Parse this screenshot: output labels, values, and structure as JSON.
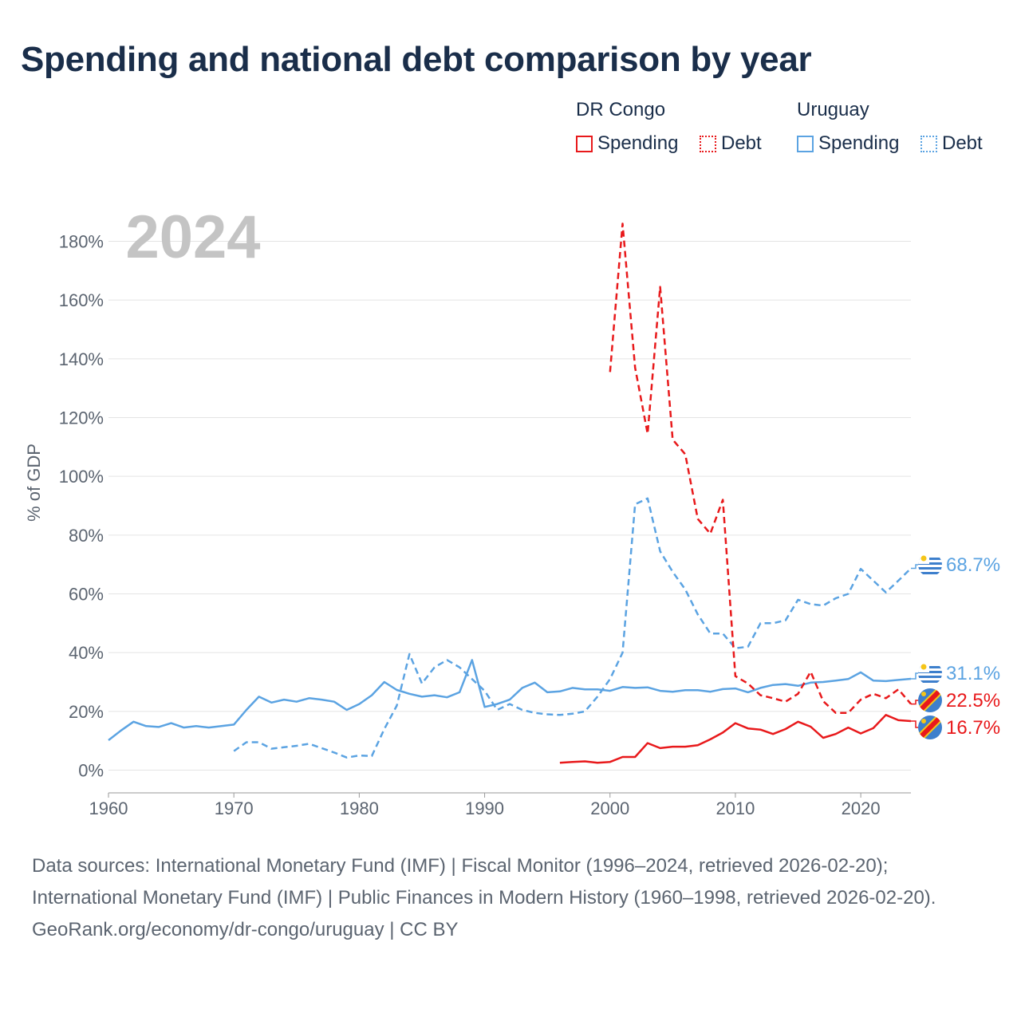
{
  "title": "Spending and national debt comparison by year",
  "legend": {
    "groups": [
      {
        "name": "DR Congo",
        "color": "#e8191b",
        "items": [
          "Spending",
          "Debt"
        ]
      },
      {
        "name": "Uruguay",
        "color": "#5ba3e2",
        "items": [
          "Spending",
          "Debt"
        ]
      }
    ]
  },
  "footer": {
    "sources_line": "Data sources: International Monetary Fund (IMF) | Fiscal Monitor (1996–2024, retrieved 2026-02-20); International Monetary Fund (IMF) | Public Finances in Modern History (1960–1998, retrieved 2026-02-20).",
    "site_line": "GeoRank.org/economy/dr-congo/uruguay | CC BY"
  },
  "chart_data": {
    "type": "line",
    "year_label": "2024",
    "ylabel": "% of GDP",
    "xlabel": "",
    "xlim": [
      1960,
      2024
    ],
    "ylim": [
      -8,
      188
    ],
    "x_ticks": [
      "1960",
      "1970",
      "1980",
      "1990",
      "2000",
      "2010",
      "2020"
    ],
    "y_ticks": [
      "0%",
      "20%",
      "40%",
      "60%",
      "80%",
      "100%",
      "120%",
      "140%",
      "160%",
      "180%"
    ],
    "series": [
      {
        "name": "Uruguay Debt",
        "country": "Uruguay",
        "metric": "Debt",
        "style": "dashed",
        "color": "#5ba3e2",
        "end_label": "68.7%",
        "points": [
          [
            1970,
            6.5
          ],
          [
            1971,
            9.5
          ],
          [
            1972,
            9.5
          ],
          [
            1973,
            7.3
          ],
          [
            1974,
            7.8
          ],
          [
            1975,
            8.3
          ],
          [
            1976,
            9.0
          ],
          [
            1977,
            7.5
          ],
          [
            1978,
            6.0
          ],
          [
            1979,
            4.3
          ],
          [
            1980,
            5.0
          ],
          [
            1981,
            4.8
          ],
          [
            1982,
            14.0
          ],
          [
            1983,
            22.0
          ],
          [
            1984,
            39.5
          ],
          [
            1985,
            29.5
          ],
          [
            1986,
            35.0
          ],
          [
            1987,
            37.5
          ],
          [
            1988,
            35.0
          ],
          [
            1989,
            31.0
          ],
          [
            1990,
            27.0
          ],
          [
            1991,
            20.5
          ],
          [
            1992,
            22.5
          ],
          [
            1993,
            20.5
          ],
          [
            1994,
            19.5
          ],
          [
            1995,
            19.0
          ],
          [
            1996,
            18.8
          ],
          [
            1997,
            19.2
          ],
          [
            1998,
            20.0
          ],
          [
            1999,
            25.0
          ],
          [
            2000,
            31.0
          ],
          [
            2001,
            40.0
          ],
          [
            2002,
            90.5
          ],
          [
            2003,
            92.5
          ],
          [
            2004,
            74.5
          ],
          [
            2005,
            67.5
          ],
          [
            2006,
            61.5
          ],
          [
            2007,
            53.0
          ],
          [
            2008,
            46.5
          ],
          [
            2009,
            46.5
          ],
          [
            2010,
            41.5
          ],
          [
            2011,
            42.0
          ],
          [
            2012,
            50.0
          ],
          [
            2013,
            50.0
          ],
          [
            2014,
            51.0
          ],
          [
            2015,
            58.0
          ],
          [
            2016,
            56.5
          ],
          [
            2017,
            56.0
          ],
          [
            2018,
            58.5
          ],
          [
            2019,
            60.0
          ],
          [
            2020,
            68.5
          ],
          [
            2021,
            64.5
          ],
          [
            2022,
            60.5
          ],
          [
            2023,
            64.5
          ],
          [
            2024,
            68.7
          ]
        ]
      },
      {
        "name": "Uruguay Spending",
        "country": "Uruguay",
        "metric": "Spending",
        "style": "solid",
        "color": "#5ba3e2",
        "end_label": "31.1%",
        "points": [
          [
            1960,
            10.2
          ],
          [
            1961,
            13.5
          ],
          [
            1962,
            16.5
          ],
          [
            1963,
            15.0
          ],
          [
            1964,
            14.7
          ],
          [
            1965,
            16.0
          ],
          [
            1966,
            14.5
          ],
          [
            1967,
            15.0
          ],
          [
            1968,
            14.5
          ],
          [
            1969,
            15.0
          ],
          [
            1970,
            15.5
          ],
          [
            1971,
            20.5
          ],
          [
            1972,
            25.0
          ],
          [
            1973,
            23.0
          ],
          [
            1974,
            24.0
          ],
          [
            1975,
            23.3
          ],
          [
            1976,
            24.5
          ],
          [
            1977,
            24.0
          ],
          [
            1978,
            23.3
          ],
          [
            1979,
            20.5
          ],
          [
            1980,
            22.5
          ],
          [
            1981,
            25.5
          ],
          [
            1982,
            30.0
          ],
          [
            1983,
            27.3
          ],
          [
            1984,
            26.0
          ],
          [
            1985,
            25.0
          ],
          [
            1986,
            25.5
          ],
          [
            1987,
            24.8
          ],
          [
            1988,
            26.5
          ],
          [
            1989,
            37.5
          ],
          [
            1990,
            21.5
          ],
          [
            1991,
            22.5
          ],
          [
            1992,
            24.0
          ],
          [
            1993,
            28.0
          ],
          [
            1994,
            29.8
          ],
          [
            1995,
            26.5
          ],
          [
            1996,
            26.8
          ],
          [
            1997,
            28.0
          ],
          [
            1998,
            27.5
          ],
          [
            1999,
            27.5
          ],
          [
            2000,
            27.0
          ],
          [
            2001,
            28.3
          ],
          [
            2002,
            28.0
          ],
          [
            2003,
            28.2
          ],
          [
            2004,
            27.0
          ],
          [
            2005,
            26.7
          ],
          [
            2006,
            27.2
          ],
          [
            2007,
            27.2
          ],
          [
            2008,
            26.7
          ],
          [
            2009,
            27.6
          ],
          [
            2010,
            27.8
          ],
          [
            2011,
            26.5
          ],
          [
            2012,
            28.0
          ],
          [
            2013,
            29.0
          ],
          [
            2014,
            29.3
          ],
          [
            2015,
            28.7
          ],
          [
            2016,
            29.8
          ],
          [
            2017,
            30.0
          ],
          [
            2018,
            30.5
          ],
          [
            2019,
            31.0
          ],
          [
            2020,
            33.3
          ],
          [
            2021,
            30.5
          ],
          [
            2022,
            30.3
          ],
          [
            2023,
            30.7
          ],
          [
            2024,
            31.1
          ]
        ]
      },
      {
        "name": "DR Congo Debt",
        "country": "DR Congo",
        "metric": "Debt",
        "style": "dashed",
        "color": "#e8191b",
        "end_label": "22.5%",
        "points": [
          [
            2000,
            135.5
          ],
          [
            2001,
            186.0
          ],
          [
            2002,
            137.0
          ],
          [
            2003,
            114.5
          ],
          [
            2004,
            164.5
          ],
          [
            2005,
            112.5
          ],
          [
            2006,
            107.5
          ],
          [
            2007,
            85.5
          ],
          [
            2008,
            80.5
          ],
          [
            2009,
            92.0
          ],
          [
            2010,
            32.0
          ],
          [
            2011,
            29.5
          ],
          [
            2012,
            25.5
          ],
          [
            2013,
            24.5
          ],
          [
            2014,
            23.3
          ],
          [
            2015,
            26.0
          ],
          [
            2016,
            33.5
          ],
          [
            2017,
            23.5
          ],
          [
            2018,
            19.5
          ],
          [
            2019,
            19.5
          ],
          [
            2020,
            24.0
          ],
          [
            2021,
            26.0
          ],
          [
            2022,
            24.5
          ],
          [
            2023,
            27.5
          ],
          [
            2024,
            22.5
          ]
        ]
      },
      {
        "name": "DR Congo Spending",
        "country": "DR Congo",
        "metric": "Spending",
        "style": "solid",
        "color": "#e8191b",
        "end_label": "16.7%",
        "points": [
          [
            1996,
            2.5
          ],
          [
            1997,
            2.8
          ],
          [
            1998,
            3.0
          ],
          [
            1999,
            2.5
          ],
          [
            2000,
            2.8
          ],
          [
            2001,
            4.5
          ],
          [
            2002,
            4.5
          ],
          [
            2003,
            9.2
          ],
          [
            2004,
            7.5
          ],
          [
            2005,
            8.0
          ],
          [
            2006,
            8.0
          ],
          [
            2007,
            8.5
          ],
          [
            2008,
            10.5
          ],
          [
            2009,
            12.8
          ],
          [
            2010,
            16.0
          ],
          [
            2011,
            14.2
          ],
          [
            2012,
            13.8
          ],
          [
            2013,
            12.3
          ],
          [
            2014,
            14.0
          ],
          [
            2015,
            16.5
          ],
          [
            2016,
            14.8
          ],
          [
            2017,
            11.0
          ],
          [
            2018,
            12.3
          ],
          [
            2019,
            14.5
          ],
          [
            2020,
            12.5
          ],
          [
            2021,
            14.3
          ],
          [
            2022,
            18.8
          ],
          [
            2023,
            17.0
          ],
          [
            2024,
            16.7
          ]
        ]
      }
    ]
  }
}
